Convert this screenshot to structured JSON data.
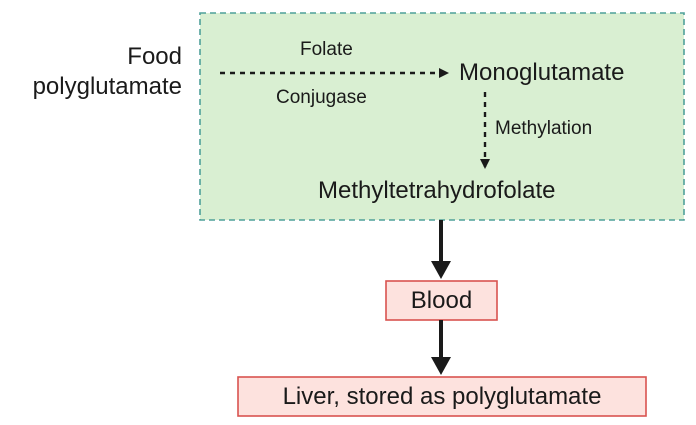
{
  "diagram": {
    "food_label_line1": "Food",
    "food_label_line2": "polyglutamate",
    "folate_label": "Folate",
    "conjugase_label": "Conjugase",
    "monoglutamate_label": "Monoglutamate",
    "methylation_label": "Methylation",
    "methyltetrahydrofolate_label": "Methyltetrahydrofolate",
    "blood_label": "Blood",
    "liver_label": "Liver, stored as polyglutamate"
  },
  "colors": {
    "region_fill": "#d9efd2",
    "region_border": "#4fa09a",
    "box_fill": "#fde2de",
    "box_border": "#d9534f",
    "arrow": "#1a1a1a",
    "text": "#1a1a1a"
  }
}
